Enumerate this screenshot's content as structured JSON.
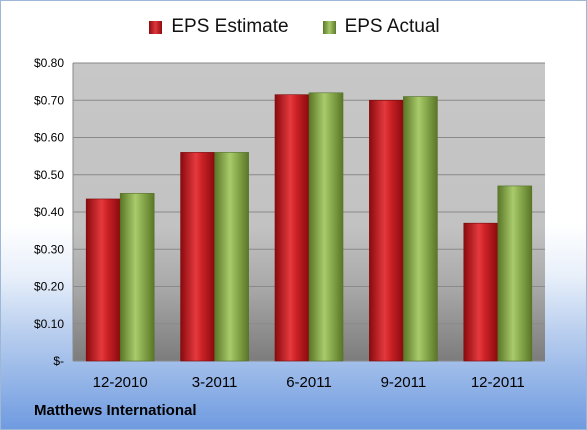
{
  "chart_data": {
    "type": "bar",
    "categories": [
      "12-2010",
      "3-2011",
      "6-2011",
      "9-2011",
      "12-2011"
    ],
    "series": [
      {
        "name": "EPS Estimate",
        "values": [
          0.435,
          0.56,
          0.715,
          0.7,
          0.37
        ]
      },
      {
        "name": "EPS Actual",
        "values": [
          0.45,
          0.56,
          0.72,
          0.71,
          0.47
        ]
      }
    ],
    "ylim": [
      0,
      0.8
    ],
    "yticks": [
      0,
      0.1,
      0.2,
      0.3,
      0.4,
      0.5,
      0.6,
      0.7,
      0.8
    ],
    "ytick_labels": [
      "$-",
      "$0.10",
      "$0.20",
      "$0.30",
      "$0.40",
      "$0.50",
      "$0.60",
      "$0.70",
      "$0.80"
    ],
    "grid": true,
    "legend_position": "top",
    "colors": {
      "estimate": "#c8181c",
      "actual": "#8fb04a"
    }
  },
  "company_name": "Matthews International"
}
